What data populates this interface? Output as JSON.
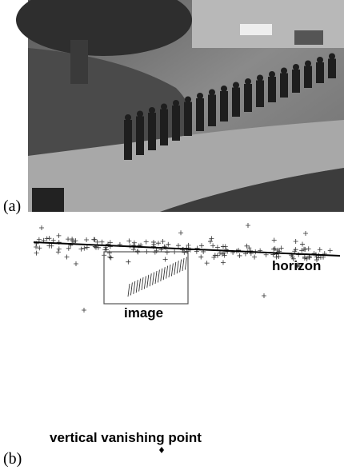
{
  "panel_a": {
    "label": "(a)"
  },
  "panel_b": {
    "label": "(b)",
    "horizon_label": "horizon",
    "image_label": "image",
    "vanishing_point_label": "vertical vanishing point"
  }
}
